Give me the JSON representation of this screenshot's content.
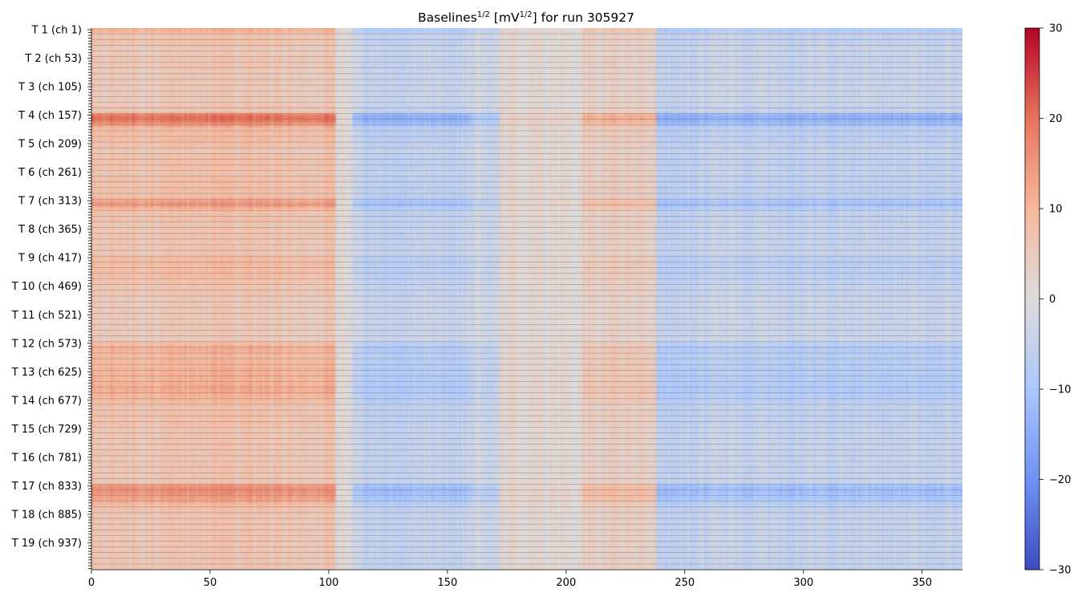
{
  "chart_data": {
    "type": "heatmap",
    "title": {
      "parts": [
        {
          "text": "Baselines",
          "sup": false
        },
        {
          "text": "1/2",
          "sup": true
        },
        {
          "text": " [mV",
          "sup": false
        },
        {
          "text": "1/2",
          "sup": true
        },
        {
          "text": "] for run 305927",
          "sup": false
        }
      ]
    },
    "xlabel": "",
    "ylabel": "",
    "colormap": "coolwarm",
    "colormap_stops": [
      "#3b4cc0",
      "#6f92f3",
      "#aac7fd",
      "#dddcdc",
      "#f7b89c",
      "#e7745b",
      "#b40426"
    ],
    "x_range": [
      0,
      367
    ],
    "x_ticks": [
      0,
      50,
      100,
      150,
      200,
      250,
      300,
      350
    ],
    "n_rows": 190,
    "n_cols": 367,
    "y_tick_labels": [
      "T 1 (ch 1)",
      "T 2 (ch 53)",
      "T 3 (ch 105)",
      "T 4 (ch 157)",
      "T 5 (ch 209)",
      "T 6 (ch 261)",
      "T 7 (ch 313)",
      "T 8 (ch 365)",
      "T 9 (ch 417)",
      "T 10 (ch 469)",
      "T 11 (ch 521)",
      "T 12 (ch 573)",
      "T 13 (ch 625)",
      "T 14 (ch 677)",
      "T 15 (ch 729)",
      "T 16 (ch 781)",
      "T 17 (ch 833)",
      "T 18 (ch 885)",
      "T 19 (ch 937)"
    ],
    "minor_ticks_per_label": 10,
    "column_segments_x": [
      0,
      103,
      110,
      160,
      172,
      207,
      238,
      367
    ],
    "segment_baseline_values": [
      7,
      0,
      -5,
      -3,
      1,
      4,
      -5
    ],
    "tube_row_weights": [
      [
        0.9,
        0.6,
        0.4,
        0.4,
        0.5,
        0.4,
        0.4,
        0.3,
        0.3,
        0.3
      ],
      [
        0.4,
        0.4,
        0.4,
        0.4,
        0.3,
        0.3,
        0.3,
        0.3,
        0.4,
        0.3
      ],
      [
        0.3,
        0.3,
        0.3,
        0.3,
        0.3,
        0.3,
        0.3,
        0.4,
        0.4,
        0.5
      ],
      [
        1.6,
        1.7,
        1.6,
        1.3,
        0.9,
        0.6,
        0.6,
        0.6,
        0.6,
        0.6
      ],
      [
        0.5,
        0.5,
        0.4,
        0.4,
        0.5,
        0.5,
        0.5,
        0.5,
        0.5,
        0.5
      ],
      [
        0.4,
        0.5,
        0.5,
        0.6,
        0.5,
        0.5,
        0.6,
        0.5,
        0.5,
        0.7
      ],
      [
        1.0,
        1.2,
        1.0,
        0.7,
        0.5,
        0.5,
        0.5,
        0.5,
        0.4,
        0.4
      ],
      [
        0.4,
        0.4,
        0.4,
        0.5,
        0.4,
        0.4,
        0.4,
        0.4,
        0.4,
        0.4
      ],
      [
        0.6,
        0.6,
        0.7,
        0.6,
        0.6,
        0.6,
        0.6,
        0.6,
        0.5,
        0.5
      ],
      [
        0.4,
        0.4,
        0.4,
        0.4,
        0.3,
        0.3,
        0.3,
        0.3,
        0.3,
        0.3
      ],
      [
        0.3,
        0.3,
        0.3,
        0.3,
        0.3,
        0.3,
        0.3,
        0.3,
        0.3,
        0.3
      ],
      [
        0.5,
        0.8,
        0.8,
        0.8,
        0.7,
        0.7,
        0.7,
        0.7,
        0.7,
        0.8
      ],
      [
        0.8,
        0.8,
        0.8,
        0.8,
        0.8,
        0.9,
        0.9,
        0.9,
        0.8,
        0.7
      ],
      [
        0.7,
        0.6,
        0.5,
        0.5,
        0.5,
        0.5,
        0.5,
        0.5,
        0.5,
        0.5
      ],
      [
        0.4,
        0.4,
        0.4,
        0.4,
        0.4,
        0.4,
        0.4,
        0.4,
        0.4,
        0.4
      ],
      [
        0.4,
        0.4,
        0.4,
        0.4,
        0.4,
        0.4,
        0.4,
        0.4,
        0.4,
        0.4
      ],
      [
        1.2,
        1.3,
        1.3,
        1.2,
        1.1,
        1.0,
        0.8,
        0.6,
        0.5,
        0.5
      ],
      [
        0.4,
        0.4,
        0.4,
        0.4,
        0.4,
        0.4,
        0.4,
        0.4,
        0.4,
        0.4
      ],
      [
        0.4,
        0.4,
        0.4,
        0.4,
        0.4,
        0.4,
        0.4,
        0.4,
        0.4,
        0.4
      ]
    ],
    "colorbar": {
      "min": -30,
      "max": 30,
      "ticks": [
        30,
        20,
        10,
        0,
        -10,
        -20,
        -30
      ],
      "tick_labels": [
        "30",
        "20",
        "10",
        "0",
        "−10",
        "−20",
        "−30"
      ]
    },
    "row_separator_color": "#808080",
    "grid": false,
    "legend": "none"
  }
}
